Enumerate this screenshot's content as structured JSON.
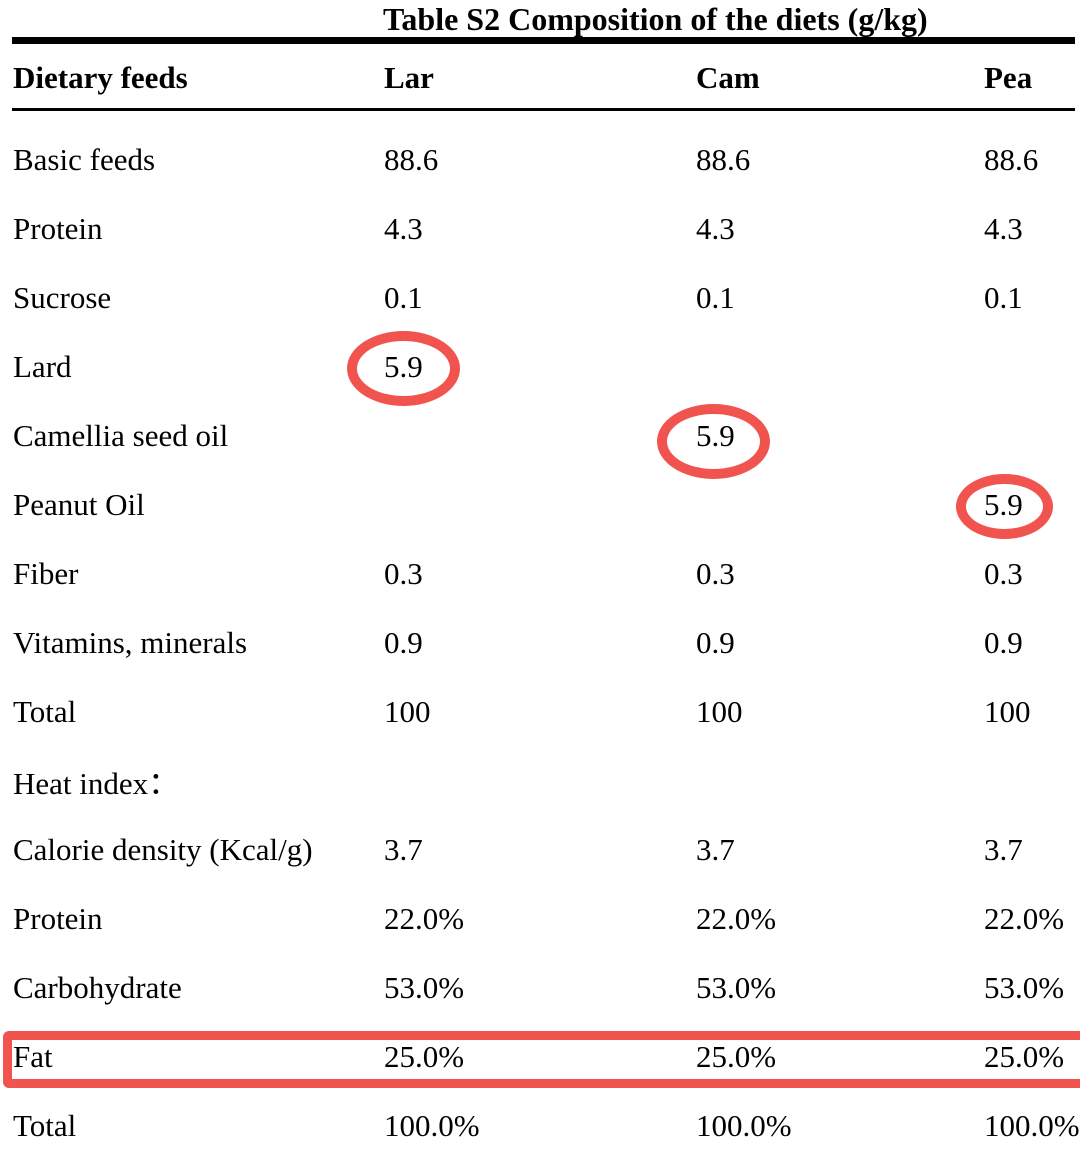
{
  "title": "Table S2 Composition of the diets (g/kg)",
  "colors": {
    "annotation_red": "#f1544f",
    "text": "#000000",
    "background": "#ffffff"
  },
  "table": {
    "columns": [
      "Dietary feeds",
      "Lar",
      "Cam",
      "Pea"
    ],
    "rows": [
      {
        "label": "Basic feeds",
        "lar": "88.6",
        "cam": "88.6",
        "pea": "88.6"
      },
      {
        "label": "Protein",
        "lar": "4.3",
        "cam": "4.3",
        "pea": "4.3"
      },
      {
        "label": "Sucrose",
        "lar": "0.1",
        "cam": "0.1",
        "pea": "0.1"
      },
      {
        "label": "Lard",
        "lar": "5.9",
        "cam": "",
        "pea": ""
      },
      {
        "label": "Camellia seed oil",
        "lar": "",
        "cam": "5.9",
        "pea": ""
      },
      {
        "label": "Peanut Oil",
        "lar": "",
        "cam": "",
        "pea": "5.9"
      },
      {
        "label": "Fiber",
        "lar": "0.3",
        "cam": "0.3",
        "pea": "0.3"
      },
      {
        "label": "Vitamins, minerals",
        "lar": "0.9",
        "cam": "0.9",
        "pea": "0.9"
      },
      {
        "label": "Total",
        "lar": "100",
        "cam": "100",
        "pea": "100"
      },
      {
        "label": "Heat index：",
        "lar": "",
        "cam": "",
        "pea": ""
      },
      {
        "label": "Calorie density (Kcal/g)",
        "lar": "3.7",
        "cam": "3.7",
        "pea": "3.7"
      },
      {
        "label": "Protein",
        "lar": "22.0%",
        "cam": "22.0%",
        "pea": "22.0%"
      },
      {
        "label": "Carbohydrate",
        "lar": "53.0%",
        "cam": "53.0%",
        "pea": "53.0%"
      },
      {
        "label": "Fat",
        "lar": "25.0%",
        "cam": "25.0%",
        "pea": "25.0%"
      },
      {
        "label": "Total",
        "lar": "100.0%",
        "cam": "100.0%",
        "pea": "100.0%"
      }
    ]
  },
  "annotations": [
    {
      "type": "ellipse",
      "row": "Lard",
      "column": "Lar",
      "value": "5.9"
    },
    {
      "type": "ellipse",
      "row": "Camellia seed oil",
      "column": "Cam",
      "value": "5.9"
    },
    {
      "type": "ellipse",
      "row": "Peanut Oil",
      "column": "Pea",
      "value": "5.9"
    },
    {
      "type": "box",
      "row": "Fat",
      "values": [
        "25.0%",
        "25.0%",
        "25.0%"
      ]
    }
  ]
}
